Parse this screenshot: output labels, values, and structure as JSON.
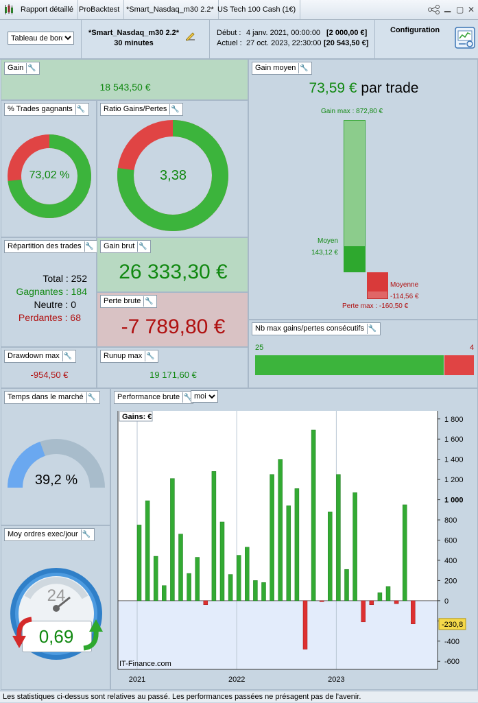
{
  "tabs": [
    {
      "label": "Rapport détaillé"
    },
    {
      "label": "ProBacktest"
    },
    {
      "label": "*Smart_Nasdaq_m30 2.2*"
    },
    {
      "label": "US Tech 100 Cash (1€)"
    }
  ],
  "header": {
    "dashboard_select": "Tableau de bord",
    "strategy_name": "*Smart_Nasdaq_m30 2.2*",
    "timeframe": "30 minutes",
    "start_label": "Début :",
    "start_date": "4 janv. 2021, 00:00:00",
    "start_value": "[2 000,00 €]",
    "current_label": "Actuel :",
    "current_date": "27 oct. 2023, 22:30:00",
    "current_value": "[20 543,50 €]",
    "config_label": "Configuration"
  },
  "gain": {
    "title": "Gain",
    "value": "18 543,50 €"
  },
  "pct_win": {
    "title": "% Trades gagnants",
    "value": "73,02 %",
    "fraction": 0.7302
  },
  "ratio": {
    "title": "Ratio Gains/Pertes",
    "value": "3,38",
    "fraction": 0.7717
  },
  "avg_gain": {
    "title": "Gain moyen",
    "value": "73,59 €",
    "suffix": "par trade",
    "gain_max_label": "Gain max : 872,80 €",
    "avg_label": "Moyen",
    "avg_value": "143,12 €",
    "loss_avg_label": "Moyenne",
    "loss_avg_value": "-114,56 €",
    "loss_max_label": "Perte max : -160,50 €"
  },
  "repartition": {
    "title": "Répartition des trades",
    "total_label": "Total :",
    "total": "252",
    "win_label": "Gagnantes :",
    "win": "184",
    "neutral_label": "Neutre :",
    "neutral": "0",
    "lose_label": "Perdantes :",
    "lose": "68"
  },
  "gross_gain": {
    "title": "Gain brut",
    "value": "26 333,30 €"
  },
  "gross_loss": {
    "title": "Perte brute",
    "value": "-7 789,80 €"
  },
  "consecutive": {
    "title": "Nb max gains/pertes consécutifs",
    "wins": "25",
    "losses": "4"
  },
  "drawdown": {
    "title": "Drawdown max",
    "value": "-954,50 €"
  },
  "runup": {
    "title": "Runup max",
    "value": "19 171,60 €"
  },
  "market_time": {
    "title": "Temps dans le marché",
    "value": "39,2 %",
    "fraction": 0.392
  },
  "orders": {
    "title": "Moy ordres exec/jour",
    "value": "0,69",
    "clock_number": "24"
  },
  "performance": {
    "title": "Performance brute",
    "period_select": "mois"
  },
  "chart_data": {
    "type": "bar",
    "series_label": "Gains: €",
    "watermark": "IT-Finance.com",
    "current_value_label": "-230,8",
    "y_ticks": [
      "1 800",
      "1 600",
      "1 400",
      "1 200",
      "1 000",
      "800",
      "600",
      "400",
      "200",
      "0",
      "-200",
      "-400",
      "-600"
    ],
    "x_labels": [
      "2021",
      "2022",
      "2023"
    ],
    "ylim": [
      -680,
      1880
    ],
    "categories": [
      "2021-01",
      "2021-02",
      "2021-03",
      "2021-04",
      "2021-05",
      "2021-06",
      "2021-07",
      "2021-08",
      "2021-09",
      "2021-10",
      "2021-11",
      "2021-12",
      "2022-01",
      "2022-02",
      "2022-03",
      "2022-04",
      "2022-05",
      "2022-06",
      "2022-07",
      "2022-08",
      "2022-09",
      "2022-10",
      "2022-11",
      "2022-12",
      "2023-01",
      "2023-02",
      "2023-03",
      "2023-04",
      "2023-05",
      "2023-06",
      "2023-07",
      "2023-08",
      "2023-09",
      "2023-10"
    ],
    "values": [
      750,
      990,
      440,
      150,
      1210,
      660,
      270,
      430,
      -40,
      1280,
      780,
      260,
      450,
      530,
      200,
      180,
      1250,
      1400,
      940,
      1110,
      -480,
      1690,
      -10,
      880,
      1250,
      310,
      1070,
      -210,
      -40,
      80,
      140,
      -30,
      950,
      -230
    ]
  }
}
